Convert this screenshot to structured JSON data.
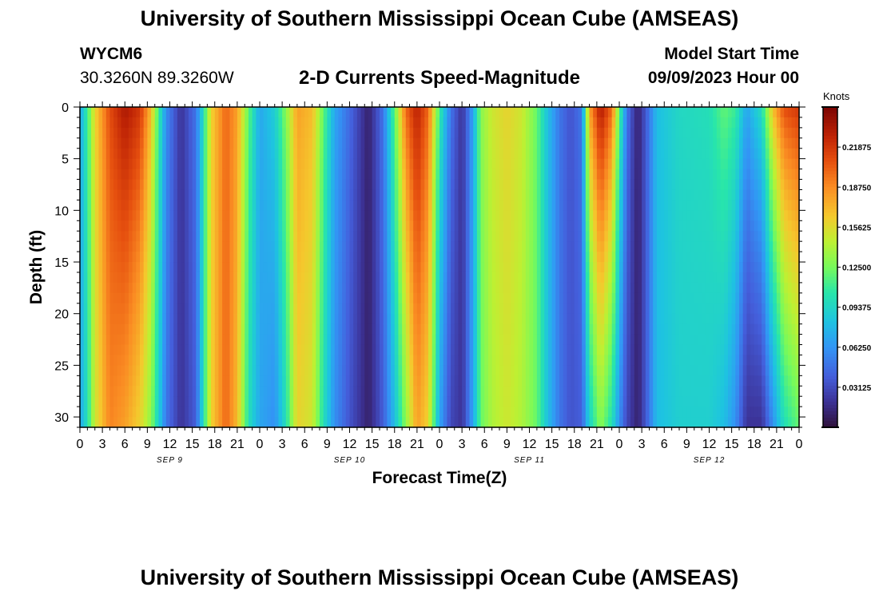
{
  "header": {
    "title": "University of Southern Mississippi Ocean Cube (AMSEAS)",
    "station_id": "WYCM6",
    "station_coords": "30.3260N  89.3260W",
    "subtitle": "2-D Currents Speed-Magnitude",
    "model_label": "Model Start Time",
    "model_time": "09/09/2023 Hour 00"
  },
  "footer": {
    "title": "University of Southern Mississippi Ocean Cube (AMSEAS)"
  },
  "chart_data": {
    "type": "heatmap",
    "title": "2-D Currents Speed-Magnitude",
    "xlabel": "Forecast Time(Z)",
    "ylabel": "Depth (ft)",
    "x_tick_labels": [
      "0",
      "3",
      "6",
      "9",
      "12",
      "15",
      "18",
      "21",
      "0",
      "3",
      "6",
      "9",
      "12",
      "15",
      "18",
      "21",
      "0",
      "3",
      "6",
      "9",
      "12",
      "15",
      "18",
      "21",
      "0",
      "3",
      "6",
      "9",
      "12",
      "15",
      "18",
      "21",
      "0"
    ],
    "x_hours": [
      0,
      3,
      6,
      9,
      12,
      15,
      18,
      21,
      24,
      27,
      30,
      33,
      36,
      39,
      42,
      45,
      48,
      51,
      54,
      57,
      60,
      63,
      66,
      69,
      72,
      75,
      78,
      81,
      84,
      87,
      90,
      93,
      96
    ],
    "xlim": [
      0,
      96
    ],
    "day_labels": [
      {
        "label": "SEP 9",
        "hour": 12
      },
      {
        "label": "SEP 10",
        "hour": 36
      },
      {
        "label": "SEP 11",
        "hour": 60
      },
      {
        "label": "SEP 12",
        "hour": 84
      }
    ],
    "y_ticks": [
      0,
      5,
      10,
      15,
      20,
      25,
      30
    ],
    "y_tick_labels": [
      "0",
      "5",
      "10",
      "15",
      "20",
      "25",
      "30"
    ],
    "ylim": [
      0,
      31
    ],
    "y_inverted": true,
    "colorbar": {
      "label": "Knots",
      "min": 0.0,
      "max": 0.25,
      "ticks": [
        0.03125,
        0.0625,
        0.09375,
        0.125,
        0.15625,
        0.1875,
        0.21875
      ],
      "tick_labels": [
        "0.03125",
        "0.06250",
        "0.09375",
        "0.12500",
        "0.15625",
        "0.18750",
        "0.21875"
      ]
    },
    "speed_profile_knots": [
      {
        "hour": 0,
        "surface": 0.07,
        "bottom": 0.07
      },
      {
        "hour": 1,
        "surface": 0.11,
        "bottom": 0.1
      },
      {
        "hour": 2,
        "surface": 0.16,
        "bottom": 0.15
      },
      {
        "hour": 4,
        "surface": 0.21,
        "bottom": 0.19
      },
      {
        "hour": 6,
        "surface": 0.235,
        "bottom": 0.18
      },
      {
        "hour": 8,
        "surface": 0.22,
        "bottom": 0.16
      },
      {
        "hour": 9.5,
        "surface": 0.17,
        "bottom": 0.13
      },
      {
        "hour": 10.5,
        "surface": 0.11,
        "bottom": 0.09
      },
      {
        "hour": 11.5,
        "surface": 0.06,
        "bottom": 0.05
      },
      {
        "hour": 13.5,
        "surface": 0.02,
        "bottom": 0.02
      },
      {
        "hour": 15.5,
        "surface": 0.05,
        "bottom": 0.04
      },
      {
        "hour": 16.5,
        "surface": 0.1,
        "bottom": 0.1
      },
      {
        "hour": 17.5,
        "surface": 0.16,
        "bottom": 0.16
      },
      {
        "hour": 19.5,
        "surface": 0.2,
        "bottom": 0.2
      },
      {
        "hour": 21,
        "surface": 0.18,
        "bottom": 0.17
      },
      {
        "hour": 22.5,
        "surface": 0.12,
        "bottom": 0.1
      },
      {
        "hour": 24,
        "surface": 0.07,
        "bottom": 0.07
      },
      {
        "hour": 26,
        "surface": 0.09,
        "bottom": 0.06
      },
      {
        "hour": 27.5,
        "surface": 0.13,
        "bottom": 0.1
      },
      {
        "hour": 29,
        "surface": 0.18,
        "bottom": 0.16
      },
      {
        "hour": 31,
        "surface": 0.17,
        "bottom": 0.15
      },
      {
        "hour": 32.5,
        "surface": 0.12,
        "bottom": 0.1
      },
      {
        "hour": 34,
        "surface": 0.07,
        "bottom": 0.06
      },
      {
        "hour": 36,
        "surface": 0.045,
        "bottom": 0.035
      },
      {
        "hour": 38.5,
        "surface": 0.01,
        "bottom": 0.01
      },
      {
        "hour": 40.5,
        "surface": 0.05,
        "bottom": 0.04
      },
      {
        "hour": 42,
        "surface": 0.12,
        "bottom": 0.08
      },
      {
        "hour": 43.5,
        "surface": 0.2,
        "bottom": 0.13
      },
      {
        "hour": 45,
        "surface": 0.23,
        "bottom": 0.18
      },
      {
        "hour": 46.5,
        "surface": 0.2,
        "bottom": 0.16
      },
      {
        "hour": 48,
        "surface": 0.11,
        "bottom": 0.07
      },
      {
        "hour": 49.5,
        "surface": 0.05,
        "bottom": 0.03
      },
      {
        "hour": 51,
        "surface": 0.02,
        "bottom": 0.02
      },
      {
        "hour": 52.5,
        "surface": 0.07,
        "bottom": 0.07
      },
      {
        "hour": 53.5,
        "surface": 0.13,
        "bottom": 0.12
      },
      {
        "hour": 55,
        "surface": 0.15,
        "bottom": 0.14
      },
      {
        "hour": 57,
        "surface": 0.16,
        "bottom": 0.15
      },
      {
        "hour": 59,
        "surface": 0.15,
        "bottom": 0.14
      },
      {
        "hour": 61,
        "surface": 0.12,
        "bottom": 0.12
      },
      {
        "hour": 62.5,
        "surface": 0.08,
        "bottom": 0.08
      },
      {
        "hour": 64,
        "surface": 0.05,
        "bottom": 0.05
      },
      {
        "hour": 65.5,
        "surface": 0.035,
        "bottom": 0.035
      },
      {
        "hour": 67,
        "surface": 0.05,
        "bottom": 0.04
      },
      {
        "hour": 68,
        "surface": 0.18,
        "bottom": 0.09
      },
      {
        "hour": 69.5,
        "surface": 0.235,
        "bottom": 0.13
      },
      {
        "hour": 71,
        "surface": 0.2,
        "bottom": 0.1
      },
      {
        "hour": 72,
        "surface": 0.12,
        "bottom": 0.06
      },
      {
        "hour": 73,
        "surface": 0.05,
        "bottom": 0.03
      },
      {
        "hour": 74.5,
        "surface": 0.01,
        "bottom": 0.01
      },
      {
        "hour": 76,
        "surface": 0.05,
        "bottom": 0.05
      },
      {
        "hour": 77,
        "surface": 0.08,
        "bottom": 0.08
      },
      {
        "hour": 80,
        "surface": 0.095,
        "bottom": 0.09
      },
      {
        "hour": 84,
        "surface": 0.1,
        "bottom": 0.09
      },
      {
        "hour": 86,
        "surface": 0.12,
        "bottom": 0.08
      },
      {
        "hour": 87.5,
        "surface": 0.11,
        "bottom": 0.06
      },
      {
        "hour": 89,
        "surface": 0.07,
        "bottom": 0.02
      },
      {
        "hour": 91,
        "surface": 0.1,
        "bottom": 0.02
      },
      {
        "hour": 92.5,
        "surface": 0.17,
        "bottom": 0.06
      },
      {
        "hour": 94,
        "surface": 0.21,
        "bottom": 0.1
      },
      {
        "hour": 96,
        "surface": 0.22,
        "bottom": 0.12
      }
    ]
  }
}
